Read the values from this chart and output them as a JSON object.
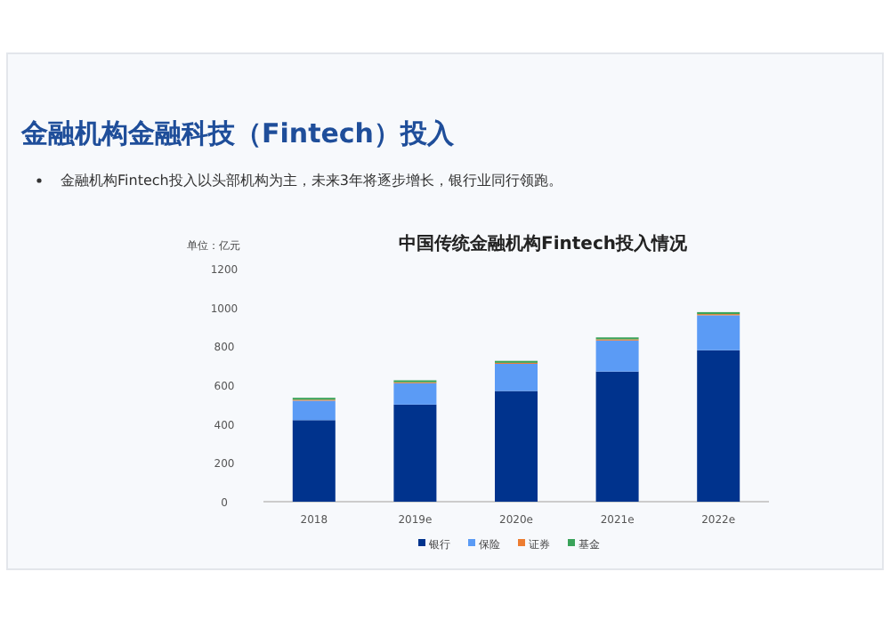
{
  "chart_data": {
    "type": "bar",
    "stacked": true,
    "title": "金融机构金融科技（Fintech）投入",
    "subtitle": "金融机构Fintech投入以头部机构为主，未来3年将逐步增长，银行业同行领跑。",
    "annotations": [
      "中国传统金融机构Fintech投入情况"
    ],
    "ylabel": "单位：亿元",
    "categories": [
      "2018",
      "2019e",
      "2020e",
      "2021e",
      "2022e"
    ],
    "series": [
      {
        "name": "银行",
        "color": "#00338d",
        "values": [
          420,
          500,
          570,
          670,
          780
        ]
      },
      {
        "name": "保险",
        "color": "#5b9bf5",
        "values": [
          100,
          110,
          140,
          160,
          180
        ]
      },
      {
        "name": "证券",
        "color": "#ed7d31",
        "values": [
          5,
          5,
          5,
          6,
          6
        ]
      },
      {
        "name": "基金",
        "color": "#3aa35a",
        "values": [
          10,
          10,
          10,
          10,
          10
        ]
      }
    ],
    "ylim": [
      0,
      1200
    ],
    "yticks": [
      0,
      200,
      400,
      600,
      800,
      1000,
      1200
    ],
    "grid": false,
    "legend": "bottom"
  }
}
